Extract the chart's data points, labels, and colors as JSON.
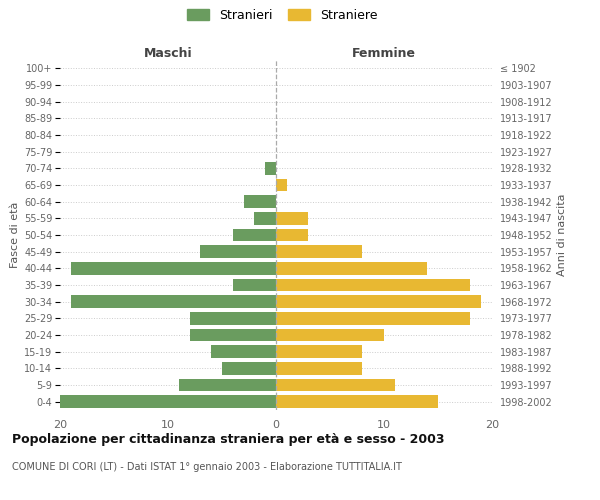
{
  "age_groups": [
    "100+",
    "95-99",
    "90-94",
    "85-89",
    "80-84",
    "75-79",
    "70-74",
    "65-69",
    "60-64",
    "55-59",
    "50-54",
    "45-49",
    "40-44",
    "35-39",
    "30-34",
    "25-29",
    "20-24",
    "15-19",
    "10-14",
    "5-9",
    "0-4"
  ],
  "birth_years": [
    "≤ 1902",
    "1903-1907",
    "1908-1912",
    "1913-1917",
    "1918-1922",
    "1923-1927",
    "1928-1932",
    "1933-1937",
    "1938-1942",
    "1943-1947",
    "1948-1952",
    "1953-1957",
    "1958-1962",
    "1963-1967",
    "1968-1972",
    "1973-1977",
    "1978-1982",
    "1983-1987",
    "1988-1992",
    "1993-1997",
    "1998-2002"
  ],
  "maschi": [
    0,
    0,
    0,
    0,
    0,
    0,
    1,
    0,
    3,
    2,
    4,
    7,
    19,
    4,
    19,
    8,
    8,
    6,
    5,
    9,
    20
  ],
  "femmine": [
    0,
    0,
    0,
    0,
    0,
    0,
    0,
    1,
    0,
    3,
    3,
    8,
    14,
    18,
    19,
    18,
    10,
    8,
    8,
    11,
    15
  ],
  "color_maschi": "#6a9c5f",
  "color_femmine": "#e8b832",
  "title": "Popolazione per cittadinanza straniera per età e sesso - 2003",
  "subtitle": "COMUNE DI CORI (LT) - Dati ISTAT 1° gennaio 2003 - Elaborazione TUTTITALIA.IT",
  "xlabel_left": "Maschi",
  "xlabel_right": "Femmine",
  "ylabel_left": "Fasce di età",
  "ylabel_right": "Anni di nascita",
  "legend_stranieri": "Stranieri",
  "legend_straniere": "Straniere",
  "xlim": 20,
  "background_color": "#ffffff",
  "grid_color": "#cccccc",
  "bar_height": 0.75
}
